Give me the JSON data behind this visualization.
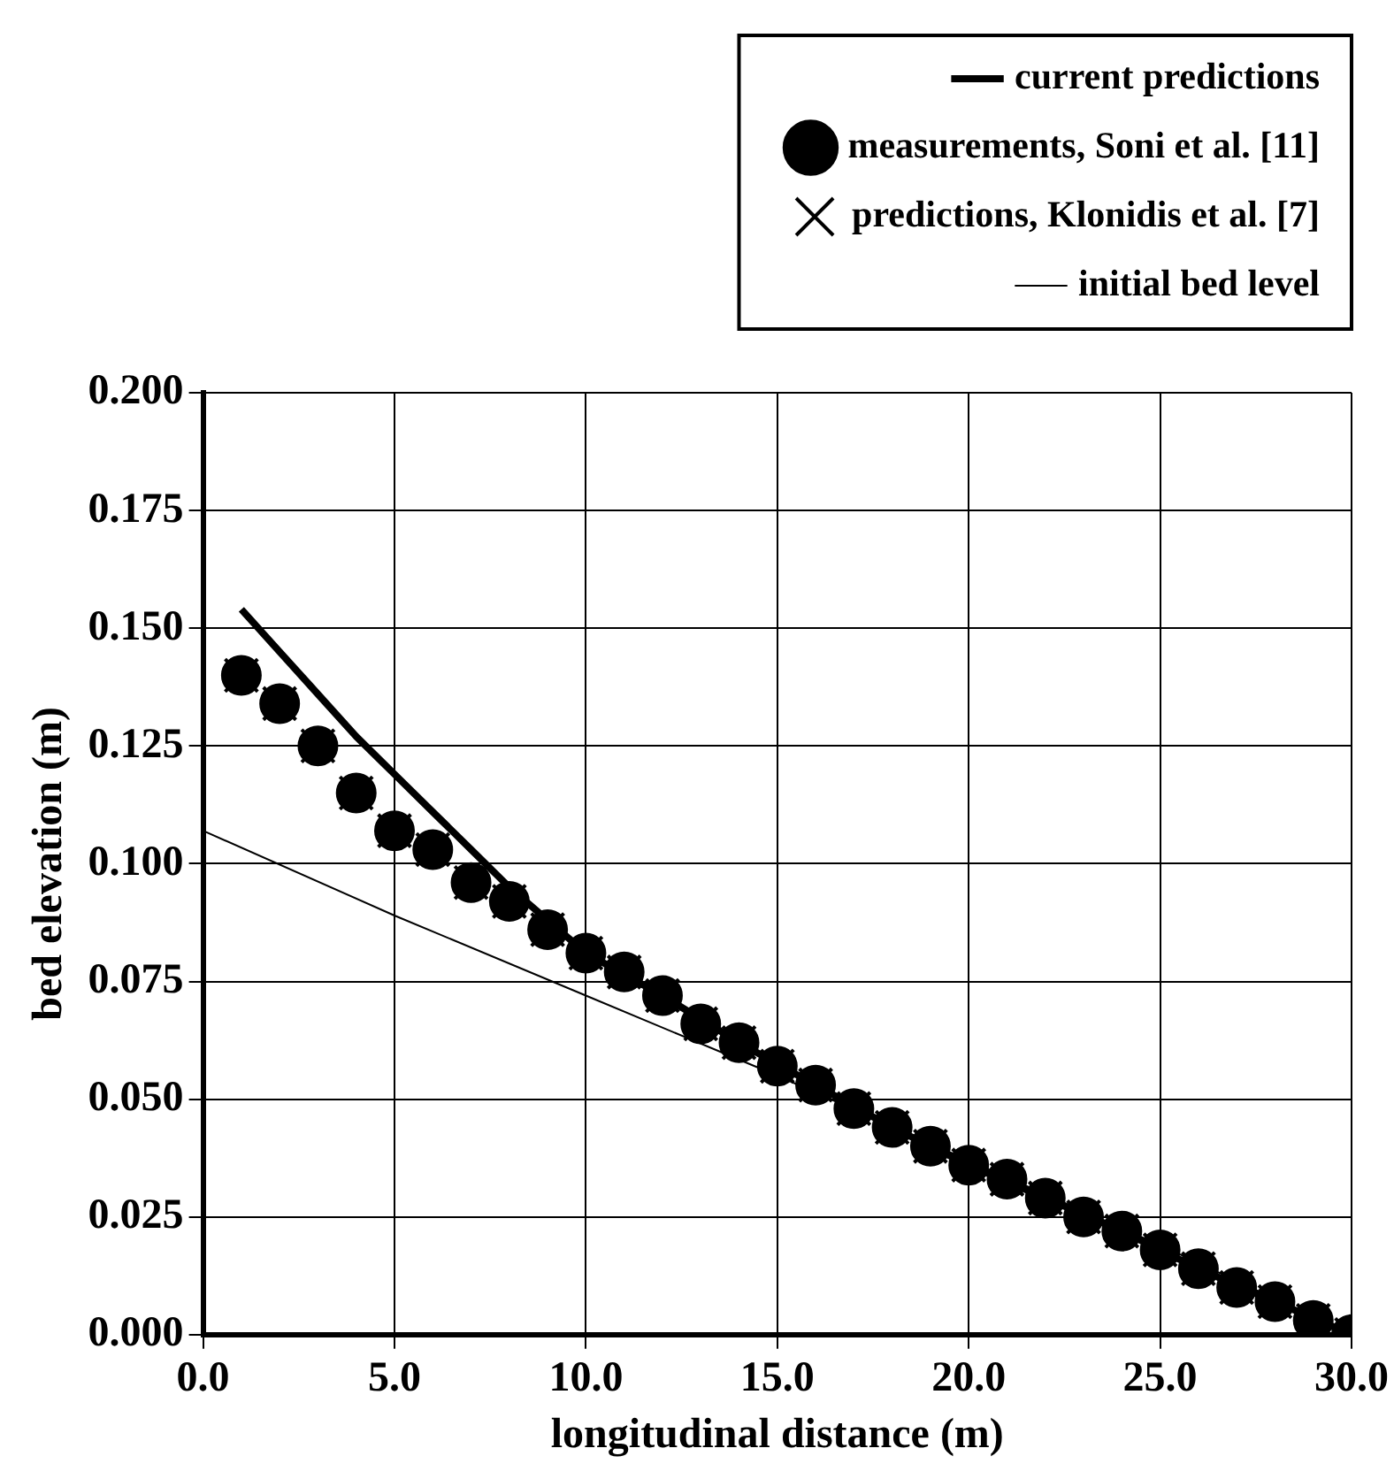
{
  "chart_data": {
    "type": "scatter",
    "xlabel": "longitudinal distance (m)",
    "ylabel": "bed elevation (m)",
    "x": [
      1,
      2,
      3,
      4,
      5,
      6,
      7,
      8,
      9,
      10,
      11,
      12,
      13,
      14,
      15,
      16,
      17,
      18,
      19,
      20,
      21,
      22,
      23,
      24,
      25,
      26,
      27,
      28,
      29,
      30
    ],
    "series": [
      {
        "name": "current predictions",
        "type": "line",
        "color": "#000000",
        "marker": "none",
        "x": [
          1,
          2,
          3,
          4,
          5,
          6,
          7,
          8,
          9,
          10,
          12,
          14,
          16,
          18,
          20,
          22,
          24,
          26,
          28,
          30
        ],
        "values": [
          0.154,
          0.145,
          0.136,
          0.127,
          0.119,
          0.111,
          0.103,
          0.095,
          0.088,
          0.081,
          0.072,
          0.062,
          0.053,
          0.044,
          0.036,
          0.029,
          0.022,
          0.014,
          0.007,
          0.0
        ]
      },
      {
        "name": "measurements, Soni et al. [11]",
        "type": "scatter",
        "color": "#000000",
        "marker": "circle",
        "values": [
          0.14,
          0.134,
          0.125,
          0.115,
          0.107,
          0.103,
          0.096,
          0.092,
          0.086,
          0.081,
          0.077,
          0.072,
          0.066,
          0.062,
          0.057,
          0.053,
          0.048,
          0.044,
          0.04,
          0.036,
          0.033,
          0.029,
          0.025,
          0.022,
          0.018,
          0.014,
          0.01,
          0.007,
          0.003,
          0.0
        ]
      },
      {
        "name": "predictions, Klonidis et al. [7]",
        "type": "scatter",
        "color": "#000000",
        "marker": "cross",
        "values": [
          0.14,
          0.134,
          0.125,
          0.115,
          0.107,
          0.103,
          0.096,
          0.092,
          0.086,
          0.081,
          0.077,
          0.072,
          0.066,
          0.062,
          0.057,
          0.053,
          0.048,
          0.044,
          0.04,
          0.036,
          0.033,
          0.029,
          0.025,
          0.022,
          0.018,
          0.014,
          0.01,
          0.007,
          0.003,
          0.0
        ]
      },
      {
        "name": "initial bed level",
        "type": "line",
        "color": "#000000",
        "marker": "none",
        "x": [
          0,
          5,
          10,
          15,
          20,
          25,
          30
        ],
        "values": [
          0.107,
          0.089,
          0.072,
          0.055,
          0.037,
          0.019,
          0.0
        ]
      }
    ],
    "xlim": [
      0,
      30
    ],
    "xticks": [
      {
        "value": 0,
        "label": "0.0"
      },
      {
        "value": 5,
        "label": "5.0"
      },
      {
        "value": 10,
        "label": "10.0"
      },
      {
        "value": 15,
        "label": "15.0"
      },
      {
        "value": 20,
        "label": "20.0"
      },
      {
        "value": 25,
        "label": "25.0"
      },
      {
        "value": 30,
        "label": "30.0"
      }
    ],
    "ylim": [
      0,
      0.2
    ],
    "yticks": [
      {
        "value": 0,
        "label": "0.000"
      },
      {
        "value": 0.025,
        "label": "0.025"
      },
      {
        "value": 0.05,
        "label": "0.050"
      },
      {
        "value": 0.075,
        "label": "0.075"
      },
      {
        "value": 0.1,
        "label": "0.100"
      },
      {
        "value": 0.125,
        "label": "0.125"
      },
      {
        "value": 0.15,
        "label": "0.150"
      },
      {
        "value": 0.175,
        "label": "0.175"
      },
      {
        "value": 0.2,
        "label": "0.200"
      }
    ],
    "grid": true,
    "legend": "top right"
  }
}
